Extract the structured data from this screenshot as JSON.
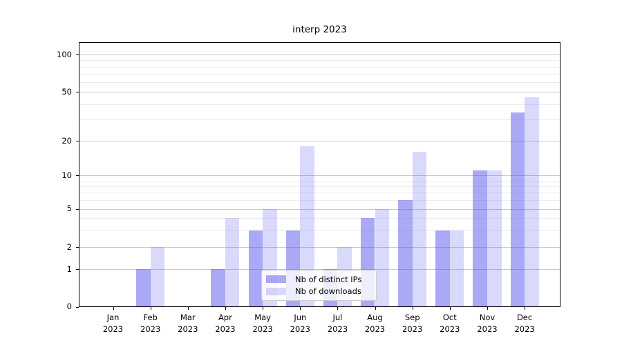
{
  "title": "interp 2023",
  "chart_data": {
    "type": "bar",
    "x_months": [
      "Jan",
      "Feb",
      "Mar",
      "Apr",
      "May",
      "Jun",
      "Jul",
      "Aug",
      "Sep",
      "Oct",
      "Nov",
      "Dec"
    ],
    "x_year": "2023",
    "series": [
      {
        "name": "Nb of distinct IPs",
        "color": "rgba(83,83,235,0.5)",
        "apparent_color": "#a9a9f5",
        "values": [
          0,
          1,
          0,
          1,
          3,
          3,
          1,
          4,
          6,
          3,
          11,
          34
        ]
      },
      {
        "name": "Nb of downloads",
        "color": "rgba(83,83,235,0.22)",
        "apparent_color": "#dadaf9",
        "values": [
          0,
          2,
          0,
          4,
          5,
          18,
          2,
          5,
          16,
          3,
          11,
          45
        ]
      }
    ],
    "y_scale": "log-like",
    "y_ticks": [
      0,
      1,
      2,
      5,
      10,
      20,
      50,
      100
    ],
    "y_minor_gridlines": [
      3,
      4,
      6,
      7,
      8,
      9,
      30,
      40,
      60,
      70,
      80,
      90
    ],
    "grid": "on",
    "legend_position": "lower-center-inside"
  },
  "colors": {
    "major_grid": "#c9c9c9",
    "minor_grid": "#ededed",
    "axis": "#000000"
  }
}
